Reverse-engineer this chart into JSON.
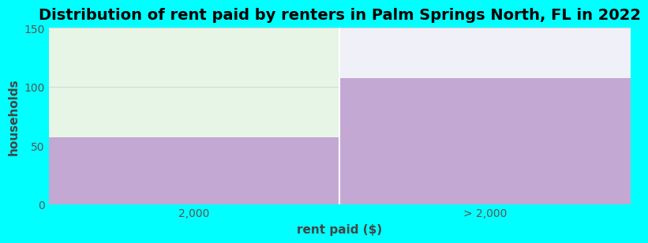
{
  "title": "Distribution of rent paid by renters in Palm Springs North, FL in 2022",
  "xlabel": "rent paid ($)",
  "ylabel": "households",
  "categories": [
    "2,000",
    "> 2,000"
  ],
  "values": [
    57,
    107
  ],
  "bar_color": "#c4a8d4",
  "ylim": [
    0,
    150
  ],
  "yticks": [
    0,
    50,
    100,
    150
  ],
  "bg_color": "#00ffff",
  "plot_bg_left": "#e6f5e6",
  "plot_bg_right": "#f0f0f8",
  "title_fontsize": 14,
  "label_fontsize": 11,
  "tick_fontsize": 10,
  "tick_color": "#555555",
  "label_color": "#444444",
  "separator_color": "#ffffff",
  "grid_color": "#e0e0e0"
}
